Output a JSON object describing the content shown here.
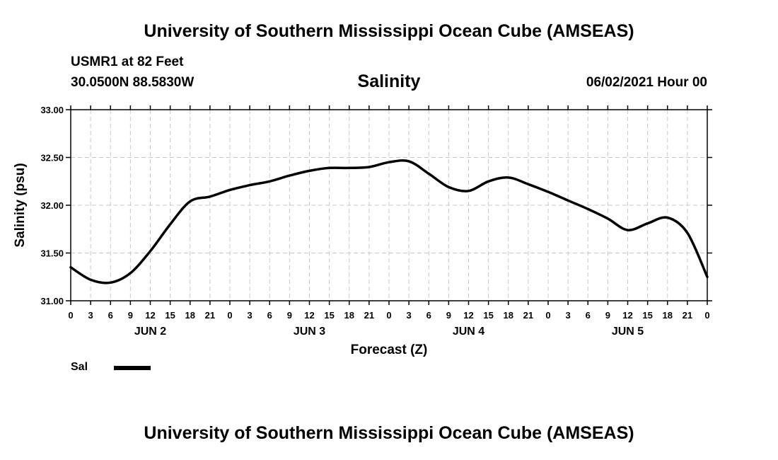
{
  "header": {
    "title": "University of Southern Mississippi Ocean Cube (AMSEAS)",
    "station": "USMR1 at 82 Feet",
    "coordinates": "30.0500N  88.5830W",
    "parameter": "Salinity",
    "datetime": "06/02/2021 Hour 00"
  },
  "footer": {
    "title": "University of Southern Mississippi Ocean Cube (AMSEAS)"
  },
  "legend": {
    "label": "Sal",
    "color": "#000000"
  },
  "chart_data": {
    "type": "line",
    "title": "Salinity",
    "xlabel": "Forecast (Z)",
    "ylabel": "Salinity (psu)",
    "xlim": [
      0,
      96
    ],
    "ylim": [
      31.0,
      33.0
    ],
    "y_ticks": [
      "31.00",
      "31.50",
      "32.00",
      "32.50",
      "33.00"
    ],
    "x_tick_labels": [
      "0",
      "3",
      "6",
      "9",
      "12",
      "15",
      "18",
      "21",
      "0",
      "3",
      "6",
      "9",
      "12",
      "15",
      "18",
      "21",
      "0",
      "3",
      "6",
      "9",
      "12",
      "15",
      "18",
      "21",
      "0",
      "3",
      "6",
      "9",
      "12",
      "15",
      "18",
      "21",
      "0"
    ],
    "day_labels": [
      {
        "label": "JUN 2",
        "hour": 12
      },
      {
        "label": "JUN 3",
        "hour": 36
      },
      {
        "label": "JUN 4",
        "hour": 60
      },
      {
        "label": "JUN 5",
        "hour": 84
      }
    ],
    "grid": true,
    "series": [
      {
        "name": "Sal",
        "x": [
          0,
          3,
          6,
          9,
          12,
          15,
          18,
          21,
          24,
          27,
          30,
          33,
          36,
          39,
          42,
          45,
          48,
          51,
          54,
          57,
          60,
          63,
          66,
          69,
          72,
          75,
          78,
          81,
          84,
          87,
          90,
          93,
          96
        ],
        "values": [
          31.35,
          31.22,
          31.19,
          31.29,
          31.52,
          31.8,
          32.04,
          32.09,
          32.16,
          32.21,
          32.25,
          32.31,
          32.36,
          32.39,
          32.39,
          32.4,
          32.45,
          32.46,
          32.33,
          32.19,
          32.15,
          32.25,
          32.29,
          32.22,
          32.14,
          32.05,
          31.96,
          31.86,
          31.74,
          31.81,
          31.87,
          31.71,
          31.25
        ]
      }
    ]
  }
}
